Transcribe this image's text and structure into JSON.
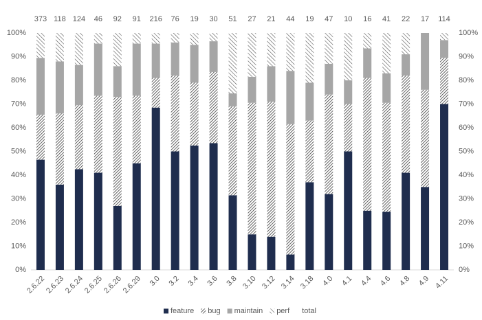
{
  "chart_data": {
    "type": "stacked_bar_percent",
    "categories": [
      "2.6.22",
      "2.6.23",
      "2.6.24",
      "2.6.25",
      "2.6.26",
      "2.6.29",
      "3.0",
      "3.2",
      "3.4",
      "3.6",
      "3.8",
      "3.10",
      "3.12",
      "3.14",
      "3.18",
      "4.0",
      "4.1",
      "4.4",
      "4.6",
      "4.8",
      "4.9",
      "4.11"
    ],
    "series": [
      {
        "name": "feature",
        "color": "#1f2d4e",
        "pattern": "solid",
        "values": [
          46.5,
          36,
          42.5,
          41,
          27,
          45,
          68.5,
          50,
          52.5,
          53.5,
          31.5,
          15,
          14,
          6.5,
          37,
          32,
          50,
          25,
          24.5,
          41,
          35,
          70
        ]
      },
      {
        "name": "bug",
        "color": "#3a3a3a",
        "pattern": "hatch-dense",
        "values": [
          19,
          30,
          27,
          32.5,
          46,
          28.5,
          12.5,
          32,
          26.5,
          30,
          37.5,
          55.5,
          57,
          55,
          26,
          42,
          20,
          56,
          46,
          41,
          41,
          19.5
        ]
      },
      {
        "name": "maintain",
        "color": "#a6a6a6",
        "pattern": "solid",
        "values": [
          24,
          22,
          17,
          22,
          13,
          22,
          14.5,
          14,
          16,
          13,
          5.5,
          11,
          15,
          22.5,
          16,
          13,
          10,
          12.5,
          12.5,
          9,
          24,
          7.5
        ]
      },
      {
        "name": "perf",
        "color": "#555555",
        "pattern": "hatch",
        "values": [
          10.5,
          12,
          13.5,
          4.5,
          14,
          4.5,
          4.5,
          4,
          5,
          3.5,
          25.5,
          18.5,
          14,
          16,
          21,
          13,
          20,
          6.5,
          17,
          9,
          0,
          3
        ]
      },
      {
        "name": "total",
        "pattern": "label",
        "values": [
          373,
          118,
          124,
          46,
          92,
          91,
          216,
          76,
          19,
          30,
          51,
          27,
          21,
          44,
          19,
          47,
          10,
          16,
          41,
          22,
          17,
          114
        ]
      }
    ],
    "ylim": [
      0,
      100
    ],
    "yticks": [
      {
        "value": 0,
        "label": "0%"
      },
      {
        "value": 10,
        "label": "10%"
      },
      {
        "value": 20,
        "label": "20%"
      },
      {
        "value": 30,
        "label": "30%"
      },
      {
        "value": 40,
        "label": "40%"
      },
      {
        "value": 50,
        "label": "50%"
      },
      {
        "value": 60,
        "label": "60%"
      },
      {
        "value": 70,
        "label": "70%"
      },
      {
        "value": 80,
        "label": "80%"
      },
      {
        "value": 90,
        "label": "90%"
      },
      {
        "value": 100,
        "label": "100%"
      }
    ],
    "y2lim": [
      0,
      100
    ],
    "y2ticks": [
      {
        "value": 0,
        "label": "0%"
      },
      {
        "value": 10,
        "label": "10%"
      },
      {
        "value": 20,
        "label": "20%"
      },
      {
        "value": 30,
        "label": "30%"
      },
      {
        "value": 40,
        "label": "40%"
      },
      {
        "value": 50,
        "label": "50%"
      },
      {
        "value": 60,
        "label": "60%"
      },
      {
        "value": 70,
        "label": "70%"
      },
      {
        "value": 80,
        "label": "80%"
      },
      {
        "value": 90,
        "label": "90%"
      },
      {
        "value": 100,
        "label": "100%"
      }
    ],
    "legend": "bottom"
  }
}
